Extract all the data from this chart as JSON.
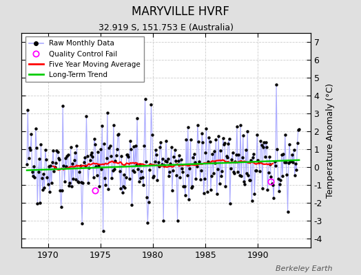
{
  "title": "MARYVILLE HVRF",
  "subtitle": "32.919 S, 151.753 E (Australia)",
  "ylabel": "Temperature Anomaly (°C)",
  "credit": "Berkeley Earth",
  "ylim": [
    -4.5,
    7.5
  ],
  "yticks": [
    -4,
    -3,
    -2,
    -1,
    0,
    1,
    2,
    3,
    4,
    5,
    6,
    7
  ],
  "xlim": [
    1967.5,
    1995.0
  ],
  "xticks": [
    1970,
    1975,
    1980,
    1985,
    1990
  ],
  "x_start_year": 1968.0,
  "n_months": 312,
  "raw_line_color": "#aaaaff",
  "raw_dot_color": "#000000",
  "ma_color": "#ff0000",
  "trend_color": "#00cc00",
  "qc_color": "#ff00ff",
  "plot_bg_color": "#ffffff",
  "fig_bg_color": "#e0e0e0",
  "qc_points": [
    [
      1974.5,
      -1.3
    ],
    [
      1991.2,
      -0.8
    ]
  ],
  "seed": 17
}
